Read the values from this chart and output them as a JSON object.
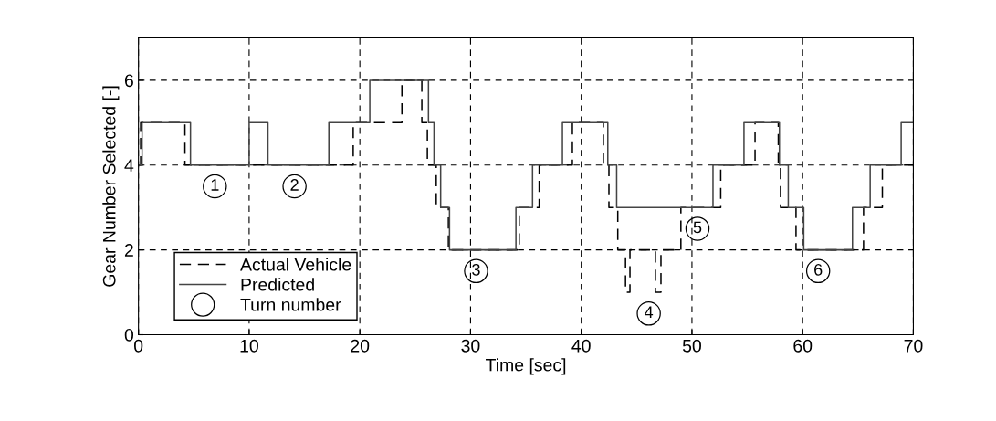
{
  "chart_data": {
    "type": "step",
    "xlabel": "Time [sec]",
    "ylabel": "Gear Number Selected [-]",
    "xlim": [
      0,
      70
    ],
    "xticks": [
      0,
      10,
      20,
      30,
      40,
      50,
      60,
      70
    ],
    "ylim": [
      0,
      7
    ],
    "yticks": [
      0,
      2,
      4,
      6
    ],
    "grid": true,
    "legend": "bottom left",
    "series": [
      {
        "name": "Actual Vehicle",
        "color": "#000000",
        "line_style": "dashed",
        "x": [
          0,
          0.2,
          4.2,
          19.4,
          23.8,
          25.6,
          26.1,
          26.9,
          28.0,
          34.4,
          36.2,
          39.2,
          42.0,
          42.5,
          43.3,
          44.0,
          44.4,
          46.7,
          47.2,
          49.0,
          52.6,
          55.7,
          57.8,
          58.0,
          59.4,
          65.5,
          67.2,
          70
        ],
        "values": [
          4,
          5,
          4,
          5,
          6,
          5,
          4,
          3,
          2,
          3,
          4,
          5,
          4,
          3,
          2,
          1,
          2,
          1,
          2,
          3,
          4,
          5,
          4,
          3,
          2,
          3,
          4,
          4
        ]
      },
      {
        "name": "Predicted",
        "color": "#444444",
        "line_style": "solid",
        "x": [
          0,
          0.33,
          4.7,
          10,
          11.7,
          17.2,
          20.9,
          26.2,
          26.7,
          27.3,
          28.1,
          34.1,
          35.6,
          38.3,
          42.4,
          43.2,
          51.9,
          54.7,
          57.9,
          58.7,
          60.1,
          64.5,
          66.1,
          68.9,
          70
        ],
        "values": [
          4,
          5,
          4,
          5,
          4,
          5,
          6,
          5,
          4,
          3,
          2,
          3,
          4,
          5,
          4,
          3,
          4,
          5,
          4,
          3,
          2,
          3,
          4,
          5,
          5
        ]
      },
      {
        "name": "Turn number",
        "type": "scatter",
        "marker": "circle",
        "color": "#000000",
        "x": [
          6.9,
          14.1,
          30.5,
          46.1,
          50.5,
          61.4
        ],
        "values": [
          3.5,
          3.5,
          1.5,
          0.5,
          2.5,
          1.5
        ]
      }
    ],
    "annotations": [
      {
        "text": "1",
        "x": 6.9,
        "y": 3.5
      },
      {
        "text": "2",
        "x": 14.1,
        "y": 3.5
      },
      {
        "text": "3",
        "x": 30.5,
        "y": 1.5
      },
      {
        "text": "4",
        "x": 46.1,
        "y": 0.5
      },
      {
        "text": "5",
        "x": 50.5,
        "y": 2.5
      },
      {
        "text": "6",
        "x": 61.4,
        "y": 1.5
      }
    ]
  }
}
